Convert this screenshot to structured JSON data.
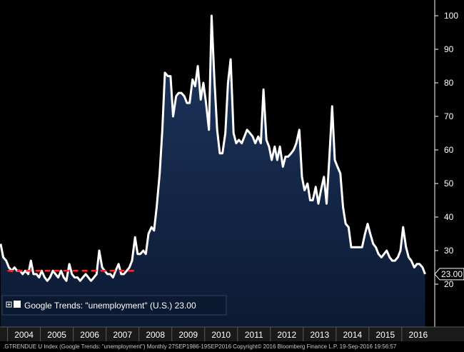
{
  "chart_data": {
    "type": "area",
    "ylim": [
      10,
      103
    ],
    "yticks": [
      20,
      30,
      40,
      50,
      60,
      70,
      80,
      90,
      100
    ],
    "xlim": [
      2003.77,
      2016.72
    ],
    "year_labels": [
      "2004",
      "2005",
      "2006",
      "2007",
      "2008",
      "2009",
      "2010",
      "2011",
      "2012",
      "2013",
      "2014",
      "2015",
      "2016"
    ],
    "legend": "Google Trends: \"unemployment\" (U.S.)  23.00",
    "last_value_label": "23.00",
    "footer": ".GTRENDUE U Index (Google Trends: \"unemployment\")  Monthly 27SEP1986-19SEP2016 Copyright© 2016 Bloomberg Finance L.P.  19-Sep-2016 19:56:57",
    "reference_line": {
      "value": 24,
      "x_start": 2004.0,
      "x_end": 2007.9,
      "color": "#ff2a2a"
    },
    "colors": {
      "line": "#ffffff",
      "fill_top": "#1f3760",
      "fill_bottom": "#0c1a33",
      "background": "#000000"
    },
    "x": [
      2003.79,
      2003.87,
      2003.96,
      2004.04,
      2004.13,
      2004.21,
      2004.29,
      2004.38,
      2004.46,
      2004.54,
      2004.63,
      2004.71,
      2004.79,
      2004.88,
      2004.96,
      2005.04,
      2005.13,
      2005.21,
      2005.29,
      2005.38,
      2005.46,
      2005.54,
      2005.63,
      2005.71,
      2005.79,
      2005.88,
      2005.96,
      2006.04,
      2006.13,
      2006.21,
      2006.29,
      2006.38,
      2006.46,
      2006.54,
      2006.63,
      2006.71,
      2006.79,
      2006.88,
      2006.96,
      2007.04,
      2007.13,
      2007.21,
      2007.29,
      2007.38,
      2007.46,
      2007.54,
      2007.63,
      2007.71,
      2007.79,
      2007.88,
      2007.96,
      2008.04,
      2008.13,
      2008.21,
      2008.29,
      2008.38,
      2008.46,
      2008.54,
      2008.63,
      2008.71,
      2008.79,
      2008.88,
      2008.96,
      2009.04,
      2009.13,
      2009.21,
      2009.29,
      2009.38,
      2009.46,
      2009.54,
      2009.63,
      2009.71,
      2009.79,
      2009.88,
      2009.96,
      2010.04,
      2010.13,
      2010.21,
      2010.29,
      2010.38,
      2010.46,
      2010.54,
      2010.63,
      2010.71,
      2010.79,
      2010.88,
      2010.96,
      2011.04,
      2011.13,
      2011.21,
      2011.29,
      2011.38,
      2011.46,
      2011.54,
      2011.63,
      2011.71,
      2011.79,
      2011.88,
      2011.96,
      2012.04,
      2012.13,
      2012.21,
      2012.29,
      2012.38,
      2012.46,
      2012.54,
      2012.63,
      2012.71,
      2012.79,
      2012.88,
      2012.96,
      2013.04,
      2013.13,
      2013.21,
      2013.29,
      2013.38,
      2013.46,
      2013.54,
      2013.63,
      2013.71,
      2013.79,
      2013.88,
      2013.96,
      2014.04,
      2014.13,
      2014.21,
      2014.29,
      2014.38,
      2014.46,
      2014.54,
      2014.63,
      2014.71,
      2014.79,
      2014.88,
      2014.96,
      2015.04,
      2015.13,
      2015.21,
      2015.29,
      2015.38,
      2015.46,
      2015.54,
      2015.63,
      2015.71,
      2015.79,
      2015.88,
      2015.96,
      2016.04,
      2016.13,
      2016.21,
      2016.29,
      2016.38,
      2016.46,
      2016.54,
      2016.63,
      2016.71
    ],
    "values": [
      32,
      28,
      27,
      25,
      24,
      25,
      24,
      24,
      23,
      24,
      23,
      27,
      23,
      23,
      22,
      24,
      22,
      21,
      22,
      24,
      23,
      22,
      24,
      22,
      21,
      26,
      23,
      22,
      22,
      21,
      22,
      23,
      22,
      21,
      22,
      23,
      30,
      25,
      24,
      23,
      23,
      22,
      24,
      26,
      23,
      23,
      24,
      25,
      27,
      34,
      29,
      29,
      30,
      29,
      35,
      37,
      36,
      43,
      53,
      66,
      83,
      82,
      82,
      70,
      76,
      77,
      77,
      76,
      74,
      74,
      81,
      79,
      85,
      75,
      80,
      74,
      66,
      100,
      82,
      66,
      59,
      59,
      65,
      80,
      87,
      65,
      62,
      63,
      62,
      64,
      66,
      65,
      64,
      62,
      64,
      62,
      78,
      63,
      61,
      57,
      61,
      57,
      61,
      55,
      58,
      58,
      59,
      60,
      62,
      66,
      52,
      48,
      50,
      45,
      45,
      49,
      44,
      48,
      52,
      44,
      57,
      73,
      57,
      55,
      53,
      43,
      38,
      37,
      31,
      31,
      31,
      31,
      31,
      35,
      38,
      35,
      32,
      31,
      29,
      28,
      29,
      30,
      28,
      27,
      27,
      28,
      30,
      37,
      31,
      28,
      27,
      25,
      26,
      26,
      25,
      23
    ]
  }
}
